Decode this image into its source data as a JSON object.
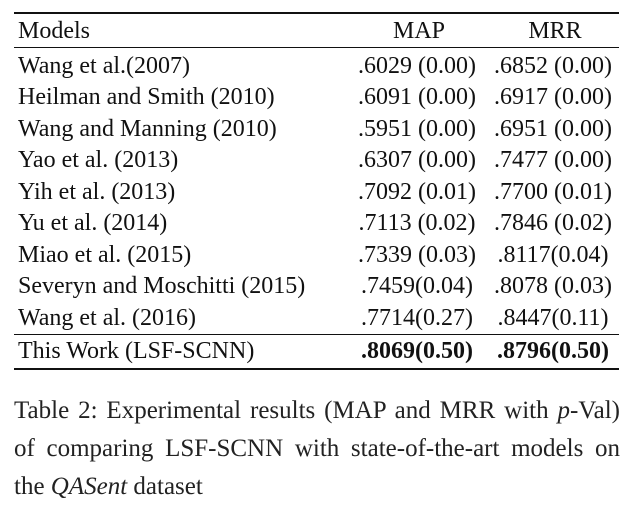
{
  "table": {
    "headers": {
      "model": "Models",
      "map": "MAP",
      "mrr": "MRR"
    },
    "rows": [
      {
        "model": "Wang et al.(2007)",
        "map": ".6029 (0.00)",
        "mrr": ".6852 (0.00)"
      },
      {
        "model": "Heilman and Smith (2010)",
        "map": ".6091 (0.00)",
        "mrr": ".6917 (0.00)"
      },
      {
        "model": "Wang and Manning (2010)",
        "map": ".5951 (0.00)",
        "mrr": ".6951 (0.00)"
      },
      {
        "model": "Yao et al. (2013)",
        "map": ".6307 (0.00)",
        "mrr": ".7477 (0.00)"
      },
      {
        "model": "Yih et al. (2013)",
        "map": ".7092 (0.01)",
        "mrr": ".7700 (0.01)"
      },
      {
        "model": "Yu et al. (2014)",
        "map": ".7113 (0.02)",
        "mrr": ".7846 (0.02)"
      },
      {
        "model": "Miao et al. (2015)",
        "map": ".7339 (0.03)",
        "mrr": ".8117(0.04)"
      },
      {
        "model": "Severyn and Moschitti (2015)",
        "map": ".7459(0.04)",
        "mrr": ".8078 (0.03)"
      },
      {
        "model": "Wang et al. (2016)",
        "map": ".7714(0.27)",
        "mrr": ".8447(0.11)"
      }
    ],
    "final_row": {
      "model": "This Work (LSF-SCNN)",
      "map": ".8069(0.50)",
      "mrr": ".8796(0.50)"
    }
  },
  "caption": {
    "part1": "Table 2: Experimental results (MAP and MRR with ",
    "p_italic": "p",
    "part2": "-Val) of comparing LSF-SCNN with state-of-the-art models on the ",
    "dataset_italic": "QASent",
    "part3": " dataset"
  }
}
